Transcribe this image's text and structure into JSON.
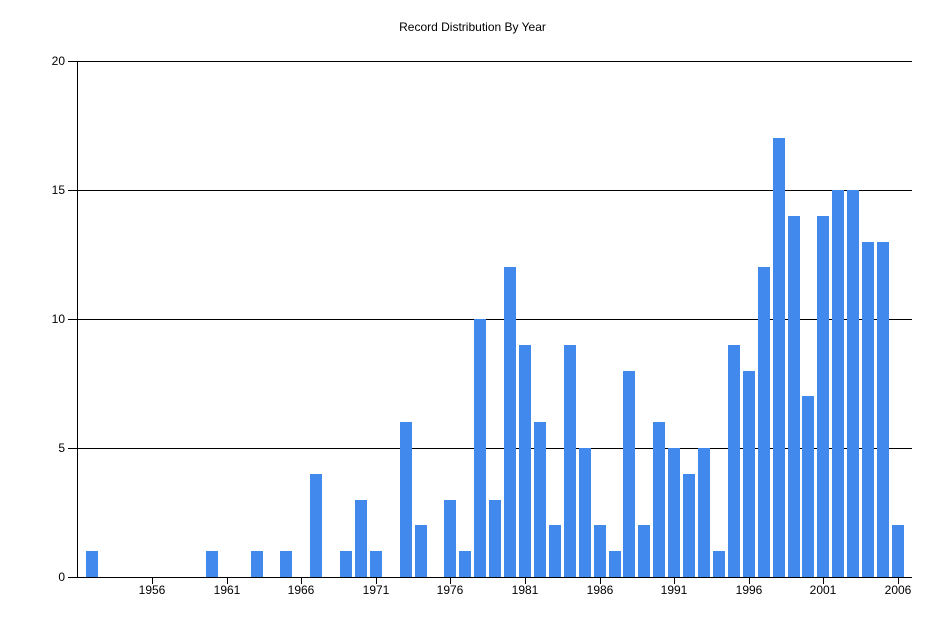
{
  "title": "Record Distribution By Year",
  "colors": {
    "bar": "#4189EC",
    "axis": "#000000",
    "gridline": "#000000",
    "text": "#000000",
    "background": "#FFFFFF"
  },
  "chart_data": {
    "type": "bar",
    "title": "Record Distribution By Year",
    "xlabel": "",
    "ylabel": "",
    "categories": [
      1952,
      1960,
      1963,
      1965,
      1967,
      1969,
      1970,
      1971,
      1973,
      1974,
      1976,
      1977,
      1978,
      1979,
      1980,
      1981,
      1982,
      1983,
      1984,
      1985,
      1986,
      1987,
      1988,
      1989,
      1990,
      1991,
      1992,
      1993,
      1994,
      1995,
      1996,
      1997,
      1998,
      1999,
      2000,
      2001,
      2002,
      2003,
      2004,
      2005,
      2006
    ],
    "values": [
      1,
      1,
      1,
      1,
      4,
      1,
      3,
      1,
      6,
      2,
      3,
      1,
      10,
      3,
      12,
      9,
      6,
      2,
      9,
      5,
      2,
      1,
      8,
      2,
      6,
      5,
      4,
      5,
      1,
      9,
      8,
      12,
      17,
      14,
      7,
      14,
      15,
      15,
      13,
      13,
      2
    ],
    "x_tick_labels": [
      "1956",
      "1961",
      "1966",
      "1971",
      "1976",
      "1981",
      "1986",
      "1991",
      "1996",
      "2001",
      "2006"
    ],
    "x_tick_years": [
      1956,
      1961,
      1966,
      1971,
      1976,
      1981,
      1986,
      1991,
      1996,
      2001,
      2006
    ],
    "y_tick_labels": [
      "0",
      "5",
      "10",
      "15",
      "20"
    ],
    "y_tick_values": [
      0,
      5,
      10,
      15,
      20
    ],
    "xlim": [
      1951,
      2007
    ],
    "ylim": [
      0,
      20
    ],
    "grid": "horizontal",
    "legend_position": "none"
  }
}
